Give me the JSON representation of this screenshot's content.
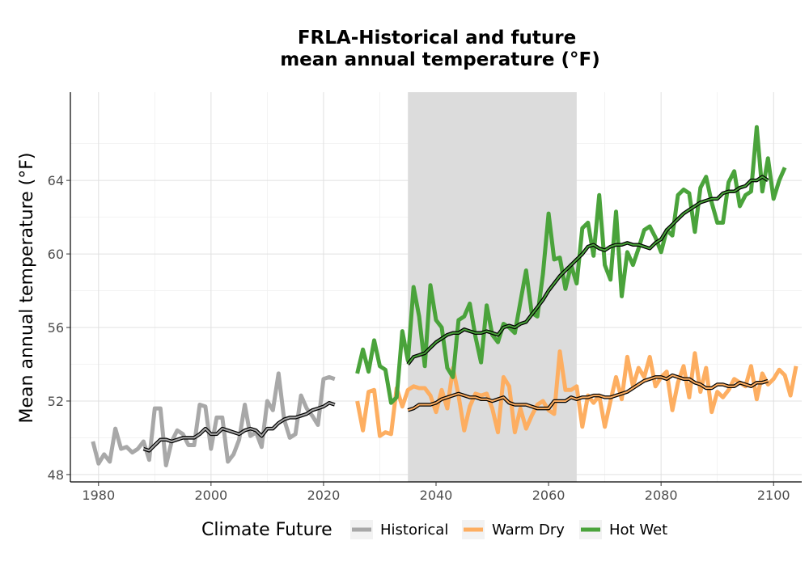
{
  "chart_data": {
    "type": "line",
    "title_lines": [
      "FRLA-Historical and future",
      "mean annual temperature (°F)"
    ],
    "xlabel": "",
    "ylabel": "Mean annual temperature (°F)",
    "xlim": [
      1975,
      2105
    ],
    "ylim": [
      47.6,
      68.8
    ],
    "x_ticks": [
      1980,
      2000,
      2020,
      2040,
      2060,
      2080,
      2100
    ],
    "y_ticks": [
      48,
      52,
      56,
      60,
      64
    ],
    "grid": true,
    "shaded_period": [
      2035,
      2065
    ],
    "colors": {
      "Historical": "#a8a8a8",
      "Warm Dry": "#fdae61",
      "Hot Wet": "#4aa33b",
      "shade": "#dcdcdc",
      "smooth": "#000000"
    },
    "legend": {
      "title": "Climate Future",
      "position": "bottom",
      "entries": [
        "Historical",
        "Warm Dry",
        "Hot Wet"
      ]
    },
    "series": [
      {
        "name": "Historical",
        "x_start": 1979,
        "values": [
          49.8,
          48.6,
          49.1,
          48.7,
          50.5,
          49.4,
          49.5,
          49.2,
          49.4,
          49.8,
          48.8,
          51.6,
          51.6,
          48.5,
          49.8,
          50.4,
          50.2,
          49.6,
          49.6,
          51.8,
          51.7,
          49.4,
          51.1,
          51.1,
          48.7,
          49.1,
          49.9,
          51.8,
          50.1,
          50.3,
          49.5,
          52.0,
          51.5,
          53.5,
          51.0,
          50.0,
          50.2,
          52.3,
          51.6,
          51.2,
          50.7,
          53.2,
          53.3,
          53.2
        ],
        "smooth_x_start": 1988,
        "smooth": [
          49.4,
          49.3,
          49.6,
          49.9,
          49.9,
          49.8,
          49.9,
          50.0,
          50.0,
          50.0,
          50.2,
          50.5,
          50.2,
          50.2,
          50.5,
          50.4,
          50.3,
          50.2,
          50.4,
          50.5,
          50.4,
          50.1,
          50.5,
          50.5,
          50.8,
          51.0,
          51.1,
          51.1,
          51.2,
          51.3,
          51.5,
          51.6,
          51.7,
          51.9,
          51.8
        ]
      },
      {
        "name": "Warm Dry",
        "x_start": 2026,
        "values": [
          52.0,
          50.4,
          52.5,
          52.6,
          50.1,
          50.3,
          50.2,
          52.7,
          51.7,
          52.6,
          52.8,
          52.7,
          52.7,
          52.3,
          51.4,
          52.6,
          51.6,
          53.8,
          52.3,
          50.4,
          51.7,
          52.4,
          52.3,
          52.4,
          51.6,
          50.3,
          53.3,
          52.8,
          50.3,
          51.6,
          50.5,
          51.2,
          51.8,
          52.0,
          51.5,
          51.3,
          54.7,
          52.6,
          52.6,
          52.8,
          50.6,
          52.3,
          51.9,
          52.3,
          50.6,
          52.0,
          53.3,
          52.1,
          54.4,
          52.8,
          53.8,
          53.3,
          54.4,
          52.8,
          53.3,
          53.6,
          51.5,
          53.0,
          53.9,
          52.2,
          54.6,
          52.5,
          53.8,
          51.4,
          52.5,
          52.2,
          52.6,
          53.2,
          53.0,
          52.8,
          53.9,
          52.1,
          53.5,
          52.9,
          53.2,
          53.7,
          53.4,
          52.3,
          53.9
        ],
        "smooth_x_start": 2035,
        "smooth": [
          51.5,
          51.6,
          51.8,
          51.8,
          51.8,
          51.9,
          52.1,
          52.2,
          52.3,
          52.4,
          52.3,
          52.2,
          52.2,
          52.1,
          52.1,
          52.0,
          52.1,
          52.2,
          51.9,
          51.8,
          51.8,
          51.8,
          51.7,
          51.6,
          51.6,
          51.6,
          52.0,
          52.0,
          52.0,
          52.2,
          52.1,
          52.2,
          52.2,
          52.3,
          52.3,
          52.2,
          52.2,
          52.3,
          52.4,
          52.5,
          52.7,
          52.9,
          53.1,
          53.2,
          53.3,
          53.3,
          53.2,
          53.4,
          53.3,
          53.2,
          53.2,
          53.0,
          52.9,
          52.7,
          52.7,
          52.9,
          52.9,
          52.8,
          52.8,
          53.0,
          52.9,
          52.8,
          53.0,
          53.0,
          53.1
        ]
      },
      {
        "name": "Hot Wet",
        "x_start": 2026,
        "values": [
          53.5,
          54.8,
          53.6,
          55.3,
          53.9,
          53.7,
          51.9,
          52.2,
          55.8,
          54.2,
          58.2,
          56.6,
          53.9,
          58.3,
          56.4,
          56.0,
          53.8,
          53.3,
          56.4,
          56.6,
          57.3,
          55.5,
          54.1,
          57.2,
          55.6,
          55.2,
          56.2,
          56.0,
          55.7,
          57.4,
          59.1,
          56.8,
          56.6,
          58.9,
          62.2,
          59.7,
          59.8,
          58.1,
          59.4,
          58.4,
          61.4,
          61.7,
          59.9,
          63.2,
          59.4,
          58.6,
          62.3,
          57.7,
          60.1,
          59.4,
          60.3,
          61.3,
          61.5,
          60.9,
          60.1,
          61.3,
          61.0,
          63.2,
          63.5,
          63.3,
          61.2,
          63.6,
          64.2,
          62.8,
          61.7,
          61.7,
          63.9,
          64.5,
          62.6,
          63.2,
          63.4,
          66.9,
          63.4,
          65.2,
          63.0,
          64.0,
          64.7
        ],
        "smooth_x_start": 2035,
        "smooth": [
          54.0,
          54.4,
          54.5,
          54.6,
          54.9,
          55.2,
          55.4,
          55.6,
          55.7,
          55.7,
          55.9,
          55.8,
          55.7,
          55.7,
          55.8,
          55.7,
          55.6,
          56.0,
          56.1,
          56.0,
          56.2,
          56.3,
          56.7,
          57.1,
          57.5,
          58.0,
          58.4,
          58.8,
          59.1,
          59.4,
          59.7,
          60.0,
          60.4,
          60.5,
          60.3,
          60.2,
          60.4,
          60.5,
          60.5,
          60.6,
          60.5,
          60.5,
          60.4,
          60.3,
          60.6,
          60.8,
          61.3,
          61.6,
          61.9,
          62.2,
          62.4,
          62.6,
          62.8,
          62.9,
          63.0,
          63.0,
          63.3,
          63.4,
          63.4,
          63.6,
          63.7,
          64.0,
          64.0,
          64.2,
          64.0
        ]
      }
    ]
  }
}
